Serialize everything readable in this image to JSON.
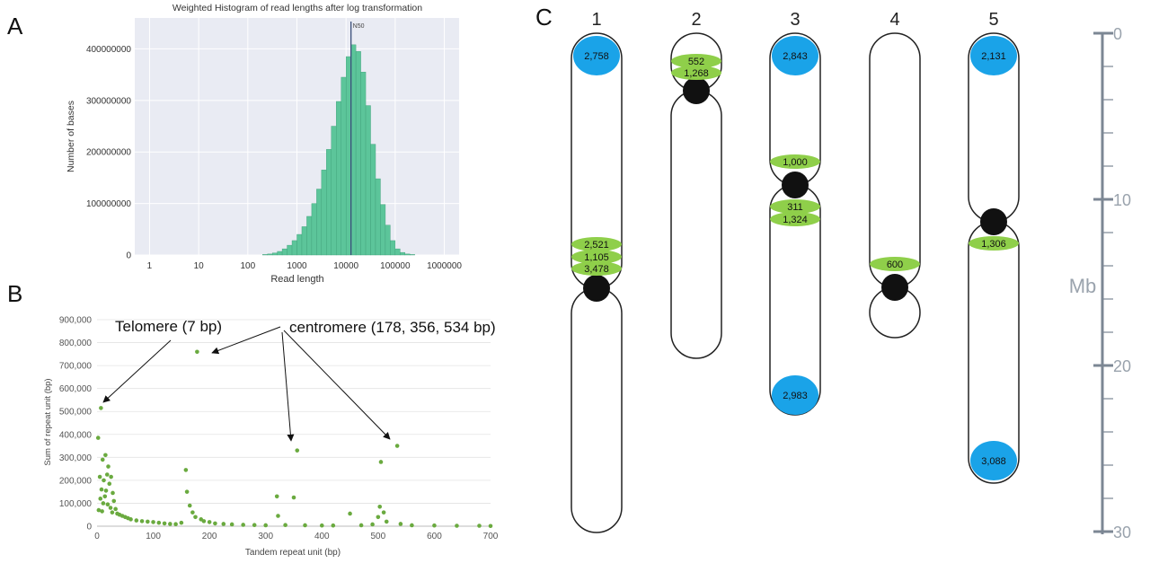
{
  "panels": {
    "a": "A",
    "b": "B",
    "c": "C"
  },
  "panel_a": {
    "title": "Weighted Histogram of read lengths after log transformation",
    "xlabel": "Read length",
    "ylabel": "Number of bases",
    "n50_label": "N50",
    "colors": {
      "bar": "#5cc59a",
      "bar_edge": "#3e9f78",
      "plot_bg": "#e9ebf3",
      "n50_line": "#3a4e7a"
    }
  },
  "panel_b": {
    "xlabel": "Tandem repeat unit (bp)",
    "ylabel": "Sum of repeat unit (bp)",
    "annotation_telomere": "Telomere (7 bp)",
    "annotation_centromere": "centromere (178, 356, 534 bp)",
    "colors": {
      "point": "#6aaa3f"
    }
  },
  "panel_c": {
    "axis_label": "Mb",
    "colors": {
      "blue": "#1aa3e8",
      "green": "#8fcf4a",
      "centromere": "#111111"
    },
    "chromosomes": [
      {
        "label": "1",
        "sites": {
          "b1": "2,758",
          "g1": "2,521",
          "g2": "1,105",
          "g3": "3,478"
        }
      },
      {
        "label": "2",
        "sites": {
          "g1": "552",
          "g2": "1,268"
        }
      },
      {
        "label": "3",
        "sites": {
          "b1": "2,843",
          "g1": "1,000",
          "g2": "311",
          "g3": "1,324",
          "b2": "2,983"
        }
      },
      {
        "label": "4",
        "sites": {
          "g1": "600"
        }
      },
      {
        "label": "5",
        "sites": {
          "b1": "2,131",
          "g1": "1,306",
          "b2": "3,088"
        }
      }
    ]
  },
  "chart_data": [
    {
      "type": "bar",
      "title": "Weighted Histogram of read lengths after log transformation",
      "xlabel": "Read length",
      "ylabel": "Number of bases",
      "x_scale": "log",
      "xlim": [
        0.5,
        2000000
      ],
      "ylim": [
        0,
        460000000
      ],
      "x_ticks": [
        "1",
        "10",
        "100",
        "1000",
        "10000",
        "100000",
        "1000000"
      ],
      "y_ticks": [
        "0",
        "100000000",
        "200000000",
        "300000000",
        "400000000"
      ],
      "grid": true,
      "n50": 12600,
      "bin_lower_edges_log10": [
        2.3,
        2.4,
        2.5,
        2.6,
        2.7,
        2.8,
        2.9,
        3.0,
        3.1,
        3.2,
        3.3,
        3.4,
        3.5,
        3.6,
        3.7,
        3.8,
        3.9,
        4.0,
        4.1,
        4.2,
        4.3,
        4.4,
        4.5,
        4.6,
        4.7,
        4.8,
        4.9,
        5.0,
        5.1,
        5.2,
        5.3
      ],
      "values": [
        1000000,
        2000000,
        4000000,
        7000000,
        12000000,
        19000000,
        28000000,
        40000000,
        55000000,
        75000000,
        100000000,
        128000000,
        165000000,
        205000000,
        250000000,
        298000000,
        345000000,
        385000000,
        408000000,
        395000000,
        355000000,
        290000000,
        215000000,
        148000000,
        98000000,
        58000000,
        28000000,
        12000000,
        5000000,
        2000000,
        1000000
      ]
    },
    {
      "type": "scatter",
      "xlabel": "Tandem repeat unit (bp)",
      "ylabel": "Sum of repeat unit (bp)",
      "xlim": [
        0,
        700
      ],
      "ylim": [
        0,
        900000
      ],
      "x_ticks": [
        "0",
        "100",
        "200",
        "300",
        "400",
        "500",
        "600",
        "700"
      ],
      "y_ticks": [
        "0",
        "100,000",
        "200,000",
        "300,000",
        "400,000",
        "500,000",
        "600,000",
        "700,000",
        "800,000",
        "900,000"
      ],
      "points": [
        [
          7,
          515000
        ],
        [
          2,
          385000
        ],
        [
          15,
          310000
        ],
        [
          10,
          290000
        ],
        [
          20,
          260000
        ],
        [
          18,
          225000
        ],
        [
          5,
          215000
        ],
        [
          25,
          215000
        ],
        [
          12,
          200000
        ],
        [
          22,
          185000
        ],
        [
          8,
          160000
        ],
        [
          16,
          155000
        ],
        [
          28,
          145000
        ],
        [
          14,
          130000
        ],
        [
          6,
          120000
        ],
        [
          30,
          110000
        ],
        [
          11,
          100000
        ],
        [
          19,
          95000
        ],
        [
          24,
          80000
        ],
        [
          33,
          75000
        ],
        [
          3,
          70000
        ],
        [
          9,
          65000
        ],
        [
          27,
          60000
        ],
        [
          36,
          55000
        ],
        [
          40,
          50000
        ],
        [
          45,
          45000
        ],
        [
          50,
          40000
        ],
        [
          55,
          35000
        ],
        [
          60,
          30000
        ],
        [
          70,
          25000
        ],
        [
          80,
          22000
        ],
        [
          90,
          20000
        ],
        [
          100,
          18000
        ],
        [
          110,
          15000
        ],
        [
          120,
          12000
        ],
        [
          130,
          10000
        ],
        [
          140,
          9000
        ],
        [
          150,
          15000
        ],
        [
          158,
          245000
        ],
        [
          160,
          150000
        ],
        [
          165,
          90000
        ],
        [
          170,
          60000
        ],
        [
          175,
          40000
        ],
        [
          178,
          760000
        ],
        [
          185,
          30000
        ],
        [
          190,
          22000
        ],
        [
          200,
          18000
        ],
        [
          210,
          12000
        ],
        [
          225,
          10000
        ],
        [
          240,
          8000
        ],
        [
          260,
          6000
        ],
        [
          280,
          5000
        ],
        [
          300,
          4000
        ],
        [
          320,
          130000
        ],
        [
          322,
          45000
        ],
        [
          335,
          5000
        ],
        [
          350,
          125000
        ],
        [
          356,
          330000
        ],
        [
          370,
          4000
        ],
        [
          400,
          3000
        ],
        [
          420,
          3000
        ],
        [
          450,
          55000
        ],
        [
          470,
          4000
        ],
        [
          490,
          8000
        ],
        [
          500,
          40000
        ],
        [
          503,
          85000
        ],
        [
          505,
          280000
        ],
        [
          510,
          60000
        ],
        [
          515,
          20000
        ],
        [
          534,
          350000
        ],
        [
          540,
          10000
        ],
        [
          560,
          4000
        ],
        [
          600,
          3000
        ],
        [
          640,
          2000
        ],
        [
          680,
          2000
        ],
        [
          700,
          1000
        ]
      ]
    }
  ]
}
